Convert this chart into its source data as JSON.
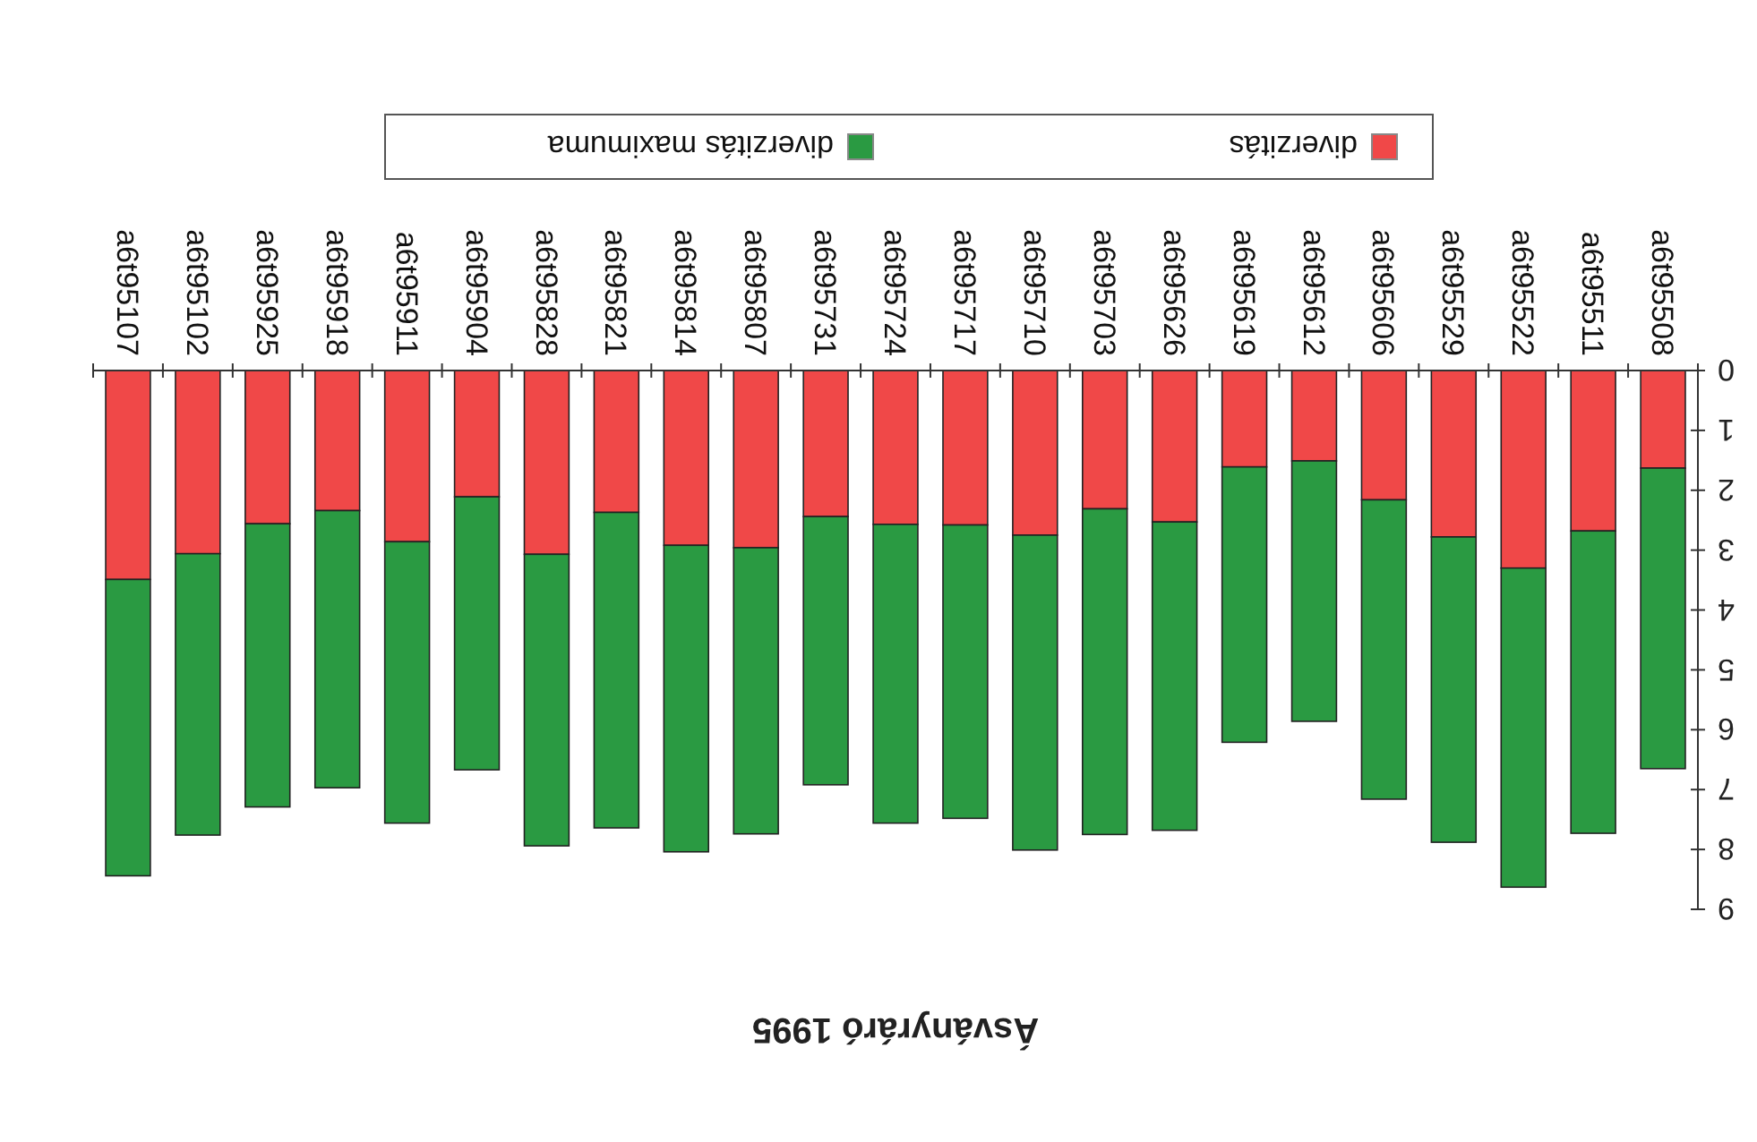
{
  "chart_data": {
    "type": "bar",
    "title": "Ásványráró 1995",
    "stacked": true,
    "legend": "top",
    "categories": [
      "a6t95107",
      "a6t95102",
      "a6t95925",
      "a6t95918",
      "a6t95911",
      "a6t95904",
      "a6t95828",
      "a6t95821",
      "a6t95814",
      "a6t95807",
      "a6t95731",
      "a6t95724",
      "a6t95717",
      "a6t95710",
      "a6t95703",
      "a6t95626",
      "a6t95619",
      "a6t95612",
      "a6t95606",
      "a6t95529",
      "a6t95522",
      "a6t95511",
      "a6t95508"
    ],
    "series": [
      {
        "name": "diverzitás",
        "color": "#f04848",
        "values": [
          3.49,
          3.06,
          2.56,
          2.34,
          2.86,
          2.11,
          3.07,
          2.37,
          2.92,
          2.96,
          2.44,
          2.57,
          2.58,
          2.75,
          2.31,
          2.53,
          1.61,
          1.51,
          2.16,
          2.78,
          3.3,
          2.68,
          1.63
        ]
      },
      {
        "name": "diverzitás maximuma",
        "color": "#2a9a42",
        "values": [
          4.95,
          4.7,
          4.73,
          4.63,
          4.7,
          4.56,
          4.87,
          5.27,
          5.12,
          4.78,
          4.48,
          4.99,
          4.9,
          5.26,
          5.44,
          5.15,
          4.6,
          4.35,
          5.0,
          5.1,
          5.33,
          5.05,
          5.02
        ]
      }
    ],
    "ylim": [
      9,
      0
    ],
    "yticks": [
      0,
      1,
      2,
      3,
      4,
      5,
      6,
      7,
      8,
      9
    ]
  }
}
